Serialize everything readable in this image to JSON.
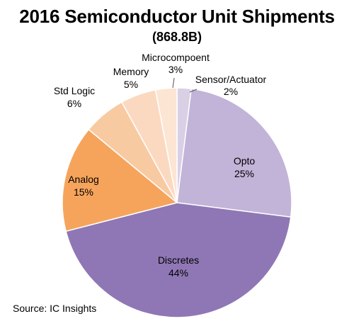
{
  "chart_data": {
    "type": "pie",
    "title": "2016 Semiconductor Unit Shipments",
    "subtitle": "(868.8B)",
    "categories": [
      "Sensor/Actuator",
      "Opto",
      "Discretes",
      "Analog",
      "Std Logic",
      "Memory",
      "Microcompoent"
    ],
    "values": [
      2,
      25,
      44,
      15,
      6,
      5,
      3
    ],
    "value_labels": [
      "2%",
      "25%",
      "44%",
      "15%",
      "6%",
      "5%",
      "3%"
    ],
    "colors": [
      "#d9d0e6",
      "#c2b3d8",
      "#8f77b5",
      "#f6a45c",
      "#f8caa2",
      "#fbd9c1",
      "#fde5d3"
    ],
    "source": "Source:  IC Insights"
  }
}
